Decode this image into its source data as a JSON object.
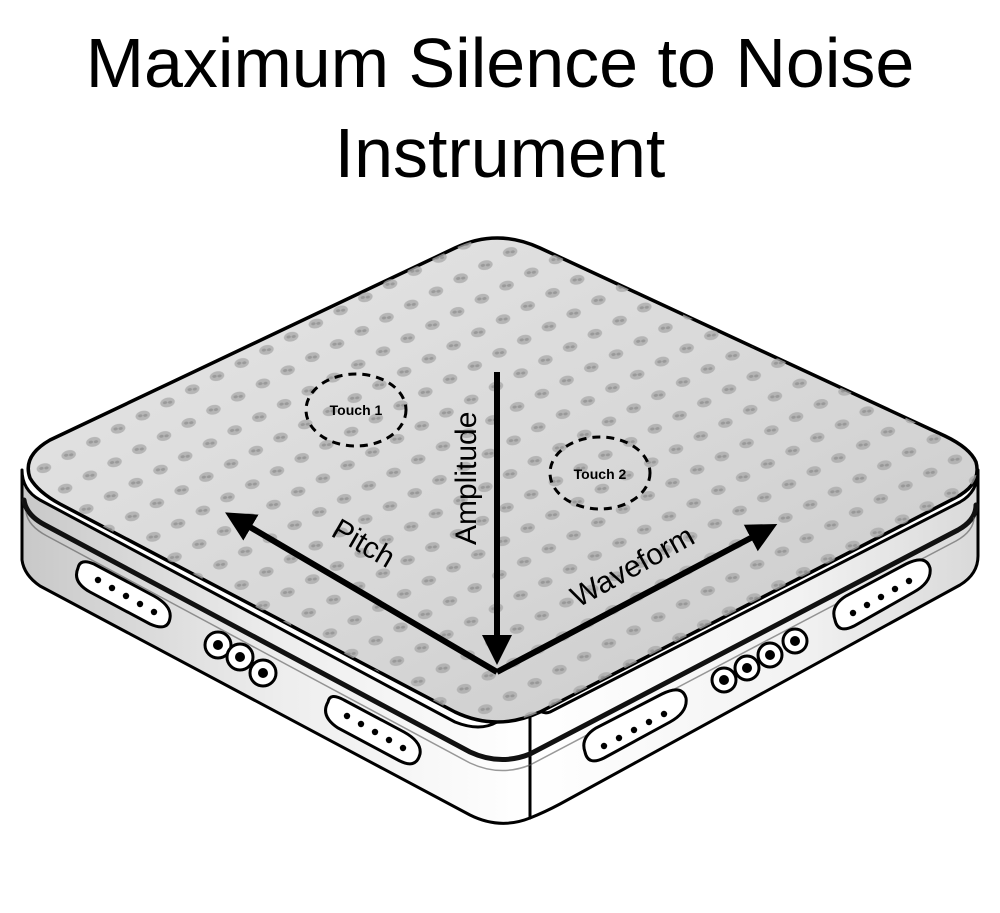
{
  "title": {
    "line1": "Maximum Silence to Noise",
    "line2": "Instrument"
  },
  "surface": {
    "axes": {
      "pitch": "Pitch",
      "amplitude": "Amplitude",
      "waveform": "Waveform"
    },
    "touches": [
      {
        "label": "Touch 1"
      },
      {
        "label": "Touch 2"
      }
    ]
  },
  "colors": {
    "ink": "#000000",
    "surface": "#d9d9d9",
    "dots": "#a8a8a8",
    "side": "#e8e8e8"
  }
}
